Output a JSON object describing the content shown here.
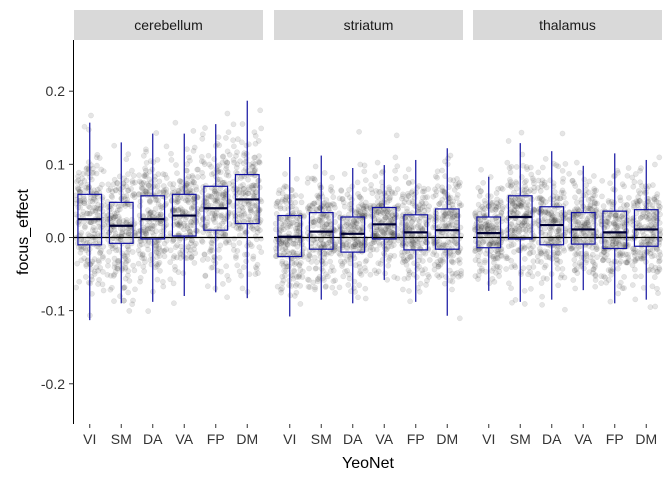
{
  "chart_data": {
    "type": "boxplot",
    "xlabel": "YeoNet",
    "ylabel": "focus_effect",
    "ylim": [
      -0.255,
      0.27
    ],
    "yticks": [
      0.2,
      0.1,
      0.0,
      -0.1,
      -0.2
    ],
    "ytick_labels": [
      "0.2",
      "0.1",
      "0.0",
      "-0.1",
      "-0.2"
    ],
    "reference_line": 0,
    "categories": [
      "VI",
      "SM",
      "DA",
      "VA",
      "FP",
      "DM"
    ],
    "colors": {
      "box": "#1010a0",
      "median": "#000033",
      "points": "#333333",
      "strip_bg": "#d9d9d9",
      "reference_line": "#000000"
    },
    "panels": [
      {
        "name": "cerebellum",
        "boxes": [
          {
            "category": "VI",
            "whisker_low": -0.113,
            "q1": -0.01,
            "median": 0.025,
            "q3": 0.059,
            "whisker_high": 0.157
          },
          {
            "category": "SM",
            "whisker_low": -0.09,
            "q1": -0.008,
            "median": 0.016,
            "q3": 0.048,
            "whisker_high": 0.13
          },
          {
            "category": "DA",
            "whisker_low": -0.088,
            "q1": -0.002,
            "median": 0.025,
            "q3": 0.057,
            "whisker_high": 0.142
          },
          {
            "category": "VA",
            "whisker_low": -0.08,
            "q1": 0.002,
            "median": 0.03,
            "q3": 0.059,
            "whisker_high": 0.142
          },
          {
            "category": "FP",
            "whisker_low": -0.075,
            "q1": 0.01,
            "median": 0.04,
            "q3": 0.07,
            "whisker_high": 0.155
          },
          {
            "category": "DM",
            "whisker_low": -0.083,
            "q1": 0.019,
            "median": 0.052,
            "q3": 0.086,
            "whisker_high": 0.187
          }
        ]
      },
      {
        "name": "striatum",
        "boxes": [
          {
            "category": "VI",
            "whisker_low": -0.108,
            "q1": -0.026,
            "median": 0.001,
            "q3": 0.03,
            "whisker_high": 0.11
          },
          {
            "category": "SM",
            "whisker_low": -0.085,
            "q1": -0.016,
            "median": 0.008,
            "q3": 0.034,
            "whisker_high": 0.112
          },
          {
            "category": "DA",
            "whisker_low": -0.09,
            "q1": -0.02,
            "median": 0.005,
            "q3": 0.028,
            "whisker_high": 0.095
          },
          {
            "category": "VA",
            "whisker_low": -0.058,
            "q1": -0.002,
            "median": 0.018,
            "q3": 0.041,
            "whisker_high": 0.099
          },
          {
            "category": "FP",
            "whisker_low": -0.088,
            "q1": -0.017,
            "median": 0.007,
            "q3": 0.031,
            "whisker_high": 0.106
          },
          {
            "category": "DM",
            "whisker_low": -0.107,
            "q1": -0.016,
            "median": 0.01,
            "q3": 0.039,
            "whisker_high": 0.122
          }
        ]
      },
      {
        "name": "thalamus",
        "boxes": [
          {
            "category": "VI",
            "whisker_low": -0.073,
            "q1": -0.014,
            "median": 0.006,
            "q3": 0.028,
            "whisker_high": 0.083
          },
          {
            "category": "SM",
            "whisker_low": -0.088,
            "q1": -0.002,
            "median": 0.028,
            "q3": 0.057,
            "whisker_high": 0.129
          },
          {
            "category": "DA",
            "whisker_low": -0.085,
            "q1": -0.01,
            "median": 0.017,
            "q3": 0.042,
            "whisker_high": 0.118
          },
          {
            "category": "VA",
            "whisker_low": -0.072,
            "q1": -0.009,
            "median": 0.011,
            "q3": 0.034,
            "whisker_high": 0.098
          },
          {
            "category": "FP",
            "whisker_low": -0.09,
            "q1": -0.015,
            "median": 0.007,
            "q3": 0.036,
            "whisker_high": 0.115
          },
          {
            "category": "DM",
            "whisker_low": -0.085,
            "q1": -0.012,
            "median": 0.011,
            "q3": 0.038,
            "whisker_high": 0.106
          }
        ]
      }
    ]
  }
}
